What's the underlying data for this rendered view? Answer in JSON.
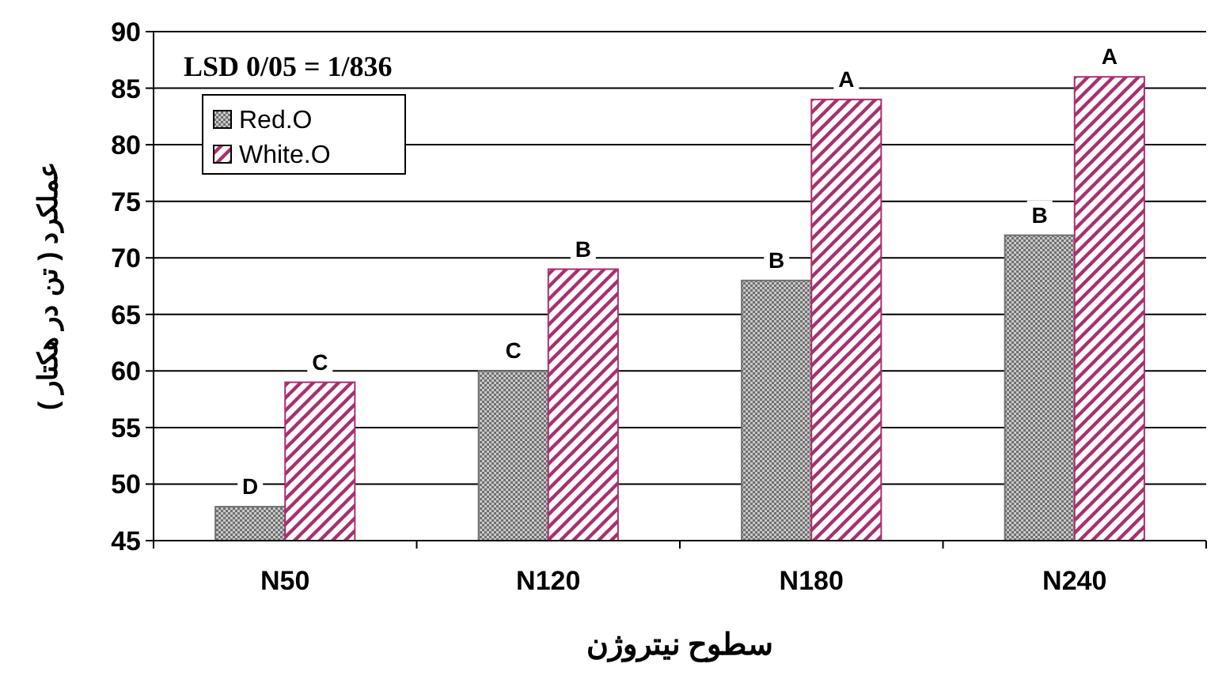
{
  "chart_data": {
    "type": "bar",
    "categories": [
      "N50",
      "N120",
      "N180",
      "N240"
    ],
    "series": [
      {
        "name": "Red.O",
        "color": "#707070",
        "values": [
          48,
          60,
          68,
          72
        ],
        "value_labels": [
          "D",
          "C",
          "B",
          "B"
        ]
      },
      {
        "name": "White.O",
        "color": "#a8306e",
        "values": [
          59,
          69,
          84,
          86
        ],
        "value_labels": [
          "C",
          "B",
          "A",
          "A"
        ]
      }
    ],
    "xlabel": "سطوح نیتروژن",
    "ylabel": "عملکرد ( تن در هکتار )",
    "annotations": [
      "LSD 0/05 = 1/836"
    ],
    "ylim": [
      45,
      90
    ],
    "yticks": [
      45,
      50,
      55,
      60,
      65,
      70,
      75,
      80,
      85,
      90
    ],
    "grid": "y",
    "legend": "top left"
  }
}
